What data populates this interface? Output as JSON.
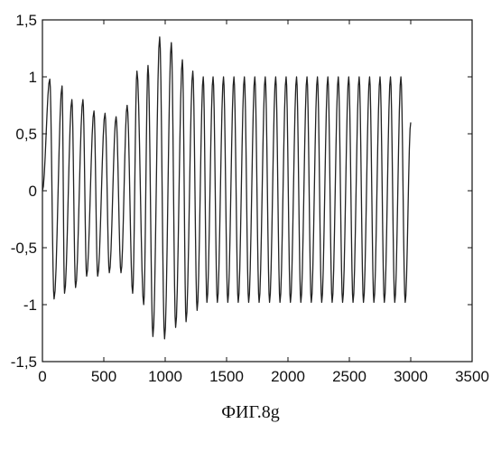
{
  "chart_data": {
    "type": "line",
    "title": "",
    "xlabel": "",
    "ylabel": "",
    "xlim": [
      0,
      3500
    ],
    "ylim": [
      -1.5,
      1.5
    ],
    "x_ticks": [
      0,
      500,
      1000,
      1500,
      2000,
      2500,
      3000,
      3500
    ],
    "x_tick_labels": [
      "0",
      "500",
      "1000",
      "1500",
      "2000",
      "2500",
      "3000",
      "3500"
    ],
    "y_ticks": [
      1.5,
      1,
      0.5,
      0,
      -0.5,
      -1,
      -1.5
    ],
    "y_tick_labels": [
      "1,5",
      "1",
      "0,5",
      "0",
      "-0,5",
      "-1",
      "-1,5"
    ],
    "grid": false,
    "line_color": "#222222",
    "series": [
      {
        "description": "oscillating signal, decaying then bursting then steady",
        "x": [
          0,
          60,
          95,
          160,
          180,
          240,
          270,
          330,
          360,
          420,
          450,
          510,
          545,
          600,
          640,
          690,
          735,
          770,
          825,
          860,
          900,
          955,
          995,
          1050,
          1085,
          1140,
          1170,
          1225,
          1260,
          1310,
          1340,
          1390,
          1425,
          1475,
          1510,
          1560,
          1595,
          1645,
          1680,
          1730,
          1765,
          1815,
          1850,
          1900,
          1935,
          1985,
          2020,
          2070,
          2105,
          2155,
          2190,
          2240,
          2275,
          2325,
          2360,
          2410,
          2445,
          2495,
          2530,
          2580,
          2615,
          2665,
          2700,
          2750,
          2785,
          2835,
          2870,
          2920,
          2955,
          3000
        ],
        "y": [
          0,
          0.98,
          -0.95,
          0.92,
          -0.9,
          0.8,
          -0.85,
          0.8,
          -0.75,
          0.7,
          -0.75,
          0.68,
          -0.72,
          0.65,
          -0.72,
          0.75,
          -0.9,
          1.05,
          -1.0,
          1.1,
          -1.28,
          1.35,
          -1.3,
          1.3,
          -1.2,
          1.15,
          -1.15,
          1.05,
          -1.05,
          1.0,
          -0.98,
          1.0,
          -0.98,
          1.0,
          -0.98,
          1.0,
          -0.98,
          1.0,
          -0.98,
          1.0,
          -0.98,
          1.0,
          -0.98,
          1.0,
          -0.98,
          1.0,
          -0.98,
          1.0,
          -0.98,
          1.0,
          -0.98,
          1.0,
          -0.98,
          1.0,
          -0.98,
          1.0,
          -0.98,
          1.0,
          -0.98,
          1.0,
          -0.98,
          1.0,
          -0.98,
          1.0,
          -0.98,
          1.0,
          -0.98,
          1.0,
          -0.98,
          0.6
        ]
      }
    ]
  },
  "caption": "ФИГ.8g"
}
